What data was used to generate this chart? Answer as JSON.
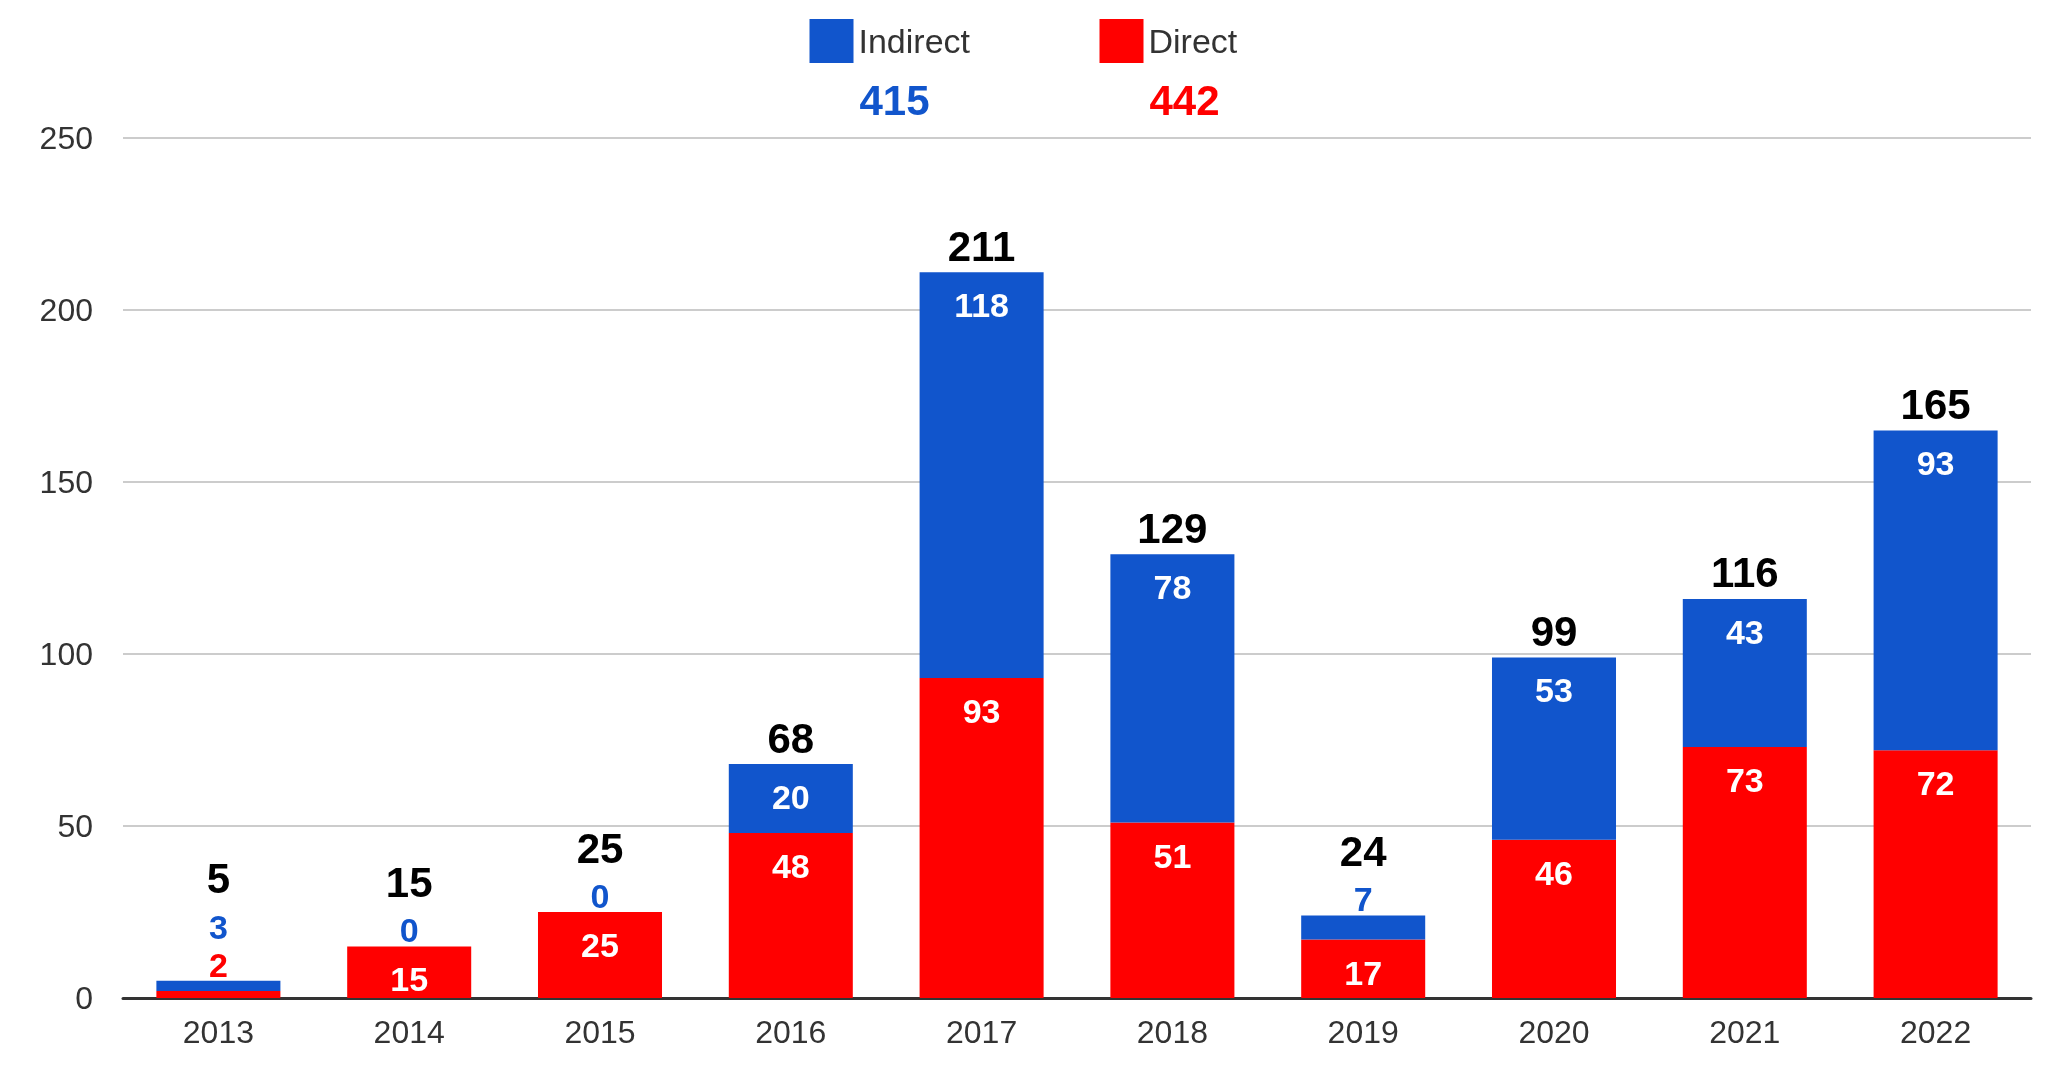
{
  "chart_data": {
    "type": "bar",
    "stacked": true,
    "categories": [
      "2013",
      "2014",
      "2015",
      "2016",
      "2017",
      "2018",
      "2019",
      "2020",
      "2021",
      "2022"
    ],
    "series": [
      {
        "name": "Direct",
        "color": "#ff0000",
        "values": [
          2,
          15,
          25,
          48,
          93,
          51,
          17,
          46,
          73,
          72
        ]
      },
      {
        "name": "Indirect",
        "color": "#1155cc",
        "values": [
          3,
          0,
          0,
          20,
          118,
          78,
          7,
          53,
          43,
          93
        ]
      }
    ],
    "totals": [
      "5",
      "15",
      "25",
      "68",
      "211",
      "129",
      "24",
      "99",
      "116",
      "165"
    ],
    "annotations": [
      "415",
      "442"
    ],
    "data_labels": true,
    "ylim": [
      0,
      250
    ],
    "yticks": [
      0,
      50,
      100,
      150,
      200,
      250
    ],
    "grid": "y",
    "legend": "top"
  }
}
